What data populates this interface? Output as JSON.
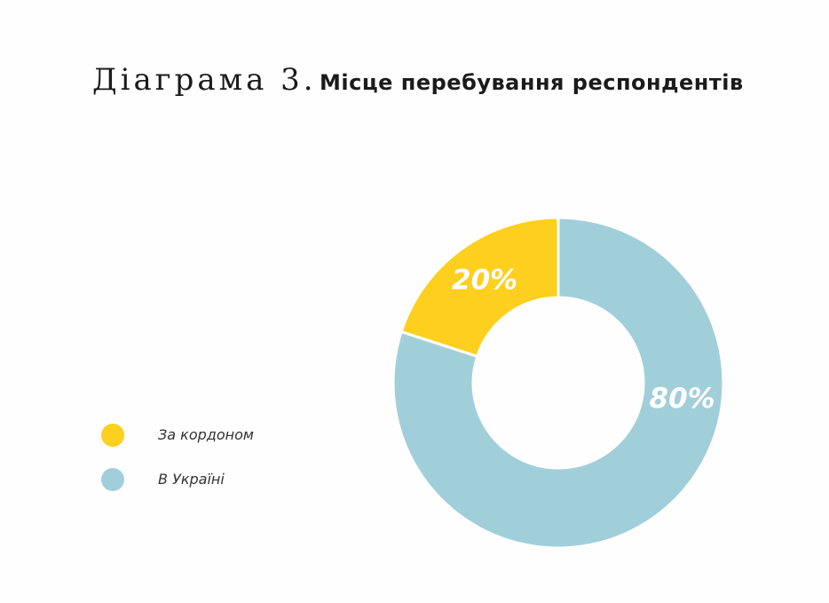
{
  "title": {
    "number": "Діаграма 3.",
    "text": "Місце перебування респондентів"
  },
  "chart_data": {
    "type": "pie",
    "variant": "donut",
    "title": "Місце перебування респондентів",
    "slices": [
      {
        "label": "За кордоном",
        "value": 20,
        "display": "20%",
        "color": "#fdcf1e"
      },
      {
        "label": "В Україні",
        "value": 80,
        "display": "80%",
        "color": "#a1cfd9"
      }
    ],
    "legend_position": "left"
  },
  "legend": [
    {
      "label": "За кордоном",
      "color": "#fdcf1e"
    },
    {
      "label": "В Україні",
      "color": "#a1cfd9"
    }
  ]
}
